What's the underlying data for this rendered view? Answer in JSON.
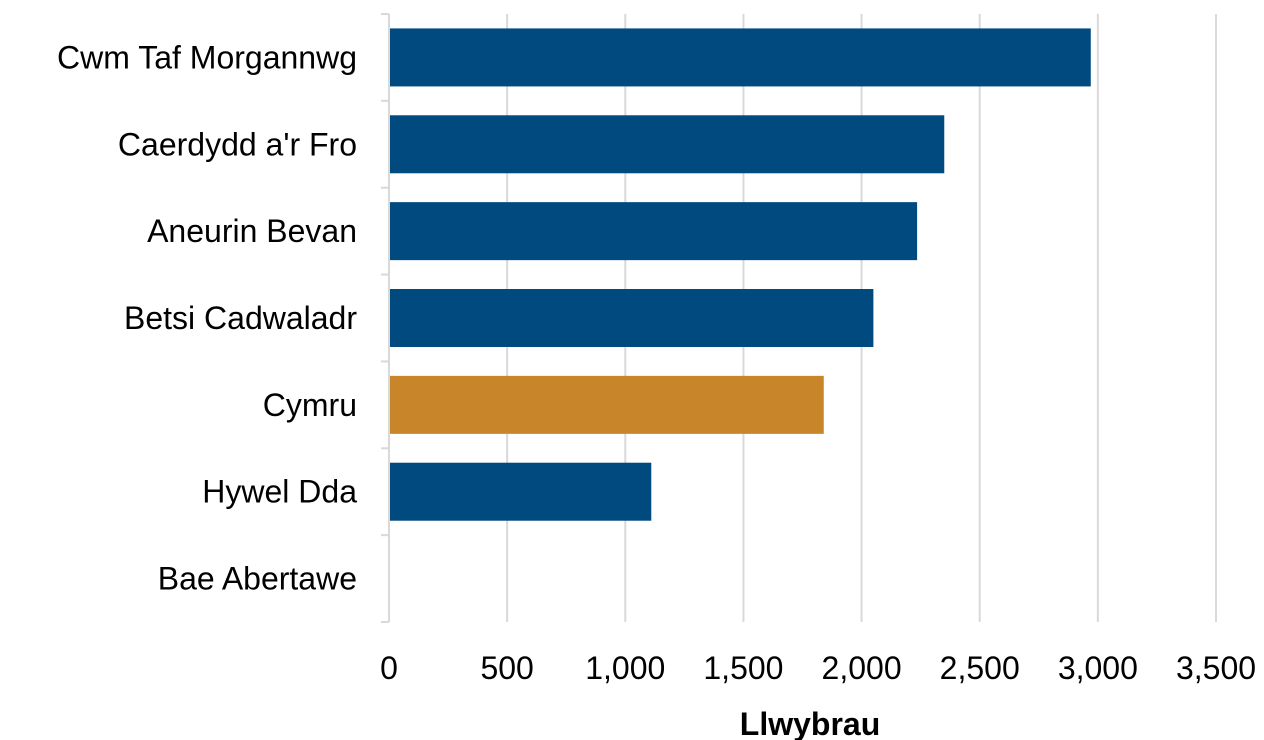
{
  "chart_data": {
    "type": "bar",
    "orientation": "horizontal",
    "categories": [
      "Cwm Taf Morgannwg",
      "Caerdydd a'r Fro",
      "Aneurin Bevan",
      "Betsi Cadwaladr",
      "Cymru",
      "Hywel Dda",
      "Bae Abertawe"
    ],
    "values": [
      2970,
      2350,
      2235,
      2050,
      1840,
      1110,
      null
    ],
    "bar_colors": [
      "#004a7f",
      "#004a7f",
      "#004a7f",
      "#004a7f",
      "#c8852a",
      "#004a7f",
      "#004a7f"
    ],
    "title": "",
    "xlabel": "Llwybrau",
    "ylabel": "",
    "xlim": [
      0,
      3500
    ],
    "xticks": [
      0,
      500,
      1000,
      1500,
      2000,
      2500,
      3000,
      3500
    ],
    "xtick_labels": [
      "0",
      "500",
      "1,000",
      "1,500",
      "2,000",
      "2,500",
      "3,000",
      "3,500"
    ],
    "grid": "vertical",
    "legend": "none"
  }
}
